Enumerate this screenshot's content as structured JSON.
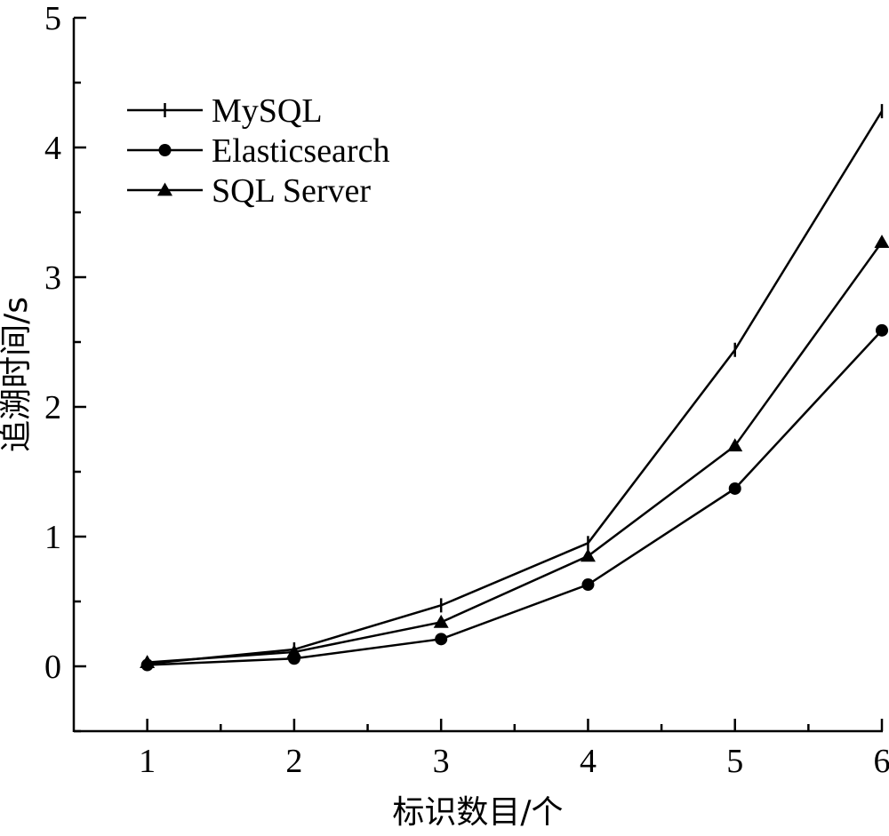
{
  "chart_data": {
    "type": "line",
    "xlabel": "标识数目/个",
    "ylabel": "追溯时间/s",
    "x": [
      1,
      2,
      3,
      4,
      5,
      6
    ],
    "xlim": [
      0.5,
      6
    ],
    "ylim": [
      -0.5,
      5
    ],
    "x_ticks": [
      1,
      2,
      3,
      4,
      5,
      6
    ],
    "y_ticks": [
      0,
      1,
      2,
      3,
      4,
      5
    ],
    "grid": false,
    "legend_position": "top-left",
    "series": [
      {
        "name": "MySQL",
        "marker": "tick",
        "values": [
          0.02,
          0.13,
          0.47,
          0.95,
          2.44,
          4.28
        ]
      },
      {
        "name": "Elasticsearch",
        "marker": "circle",
        "values": [
          0.01,
          0.06,
          0.21,
          0.63,
          1.37,
          2.59
        ]
      },
      {
        "name": "SQL Server",
        "marker": "triangle",
        "values": [
          0.03,
          0.11,
          0.34,
          0.85,
          1.7,
          3.27
        ]
      }
    ]
  }
}
